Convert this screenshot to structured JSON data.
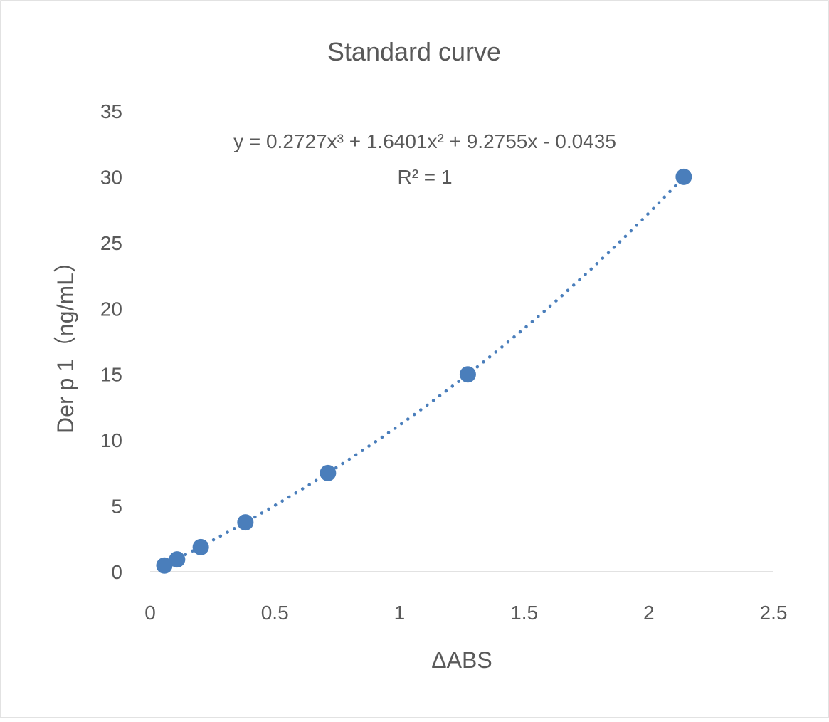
{
  "chart_data": {
    "type": "scatter",
    "title": "Standard curve",
    "xlabel": "ΔABS",
    "ylabel": "Der p 1（ng/mL）",
    "xlim": [
      0,
      2.5
    ],
    "ylim": [
      0,
      35
    ],
    "x_ticks": [
      "0",
      "0.5",
      "1",
      "1.5",
      "2",
      "2.5"
    ],
    "y_ticks": [
      "0",
      "5",
      "10",
      "15",
      "20",
      "25",
      "30",
      "35"
    ],
    "grid": false,
    "legend": "none",
    "marker_color": "#4a7ebb",
    "series": [
      {
        "x": [
          0.057,
          0.108,
          0.203,
          0.382,
          0.713,
          1.274,
          2.14
        ],
        "y": [
          0.47,
          0.94,
          1.875,
          3.75,
          7.5,
          15,
          30
        ]
      }
    ],
    "trendline": {
      "type": "polynomial",
      "order": 3,
      "coefficients": [
        0.2727,
        1.6401,
        9.2755,
        -0.0435
      ],
      "style": "dotted",
      "equation_label": "y = 0.2727x³ + 1.6401x² + 9.2755x - 0.0435",
      "r2_label": "R² = 1"
    }
  }
}
